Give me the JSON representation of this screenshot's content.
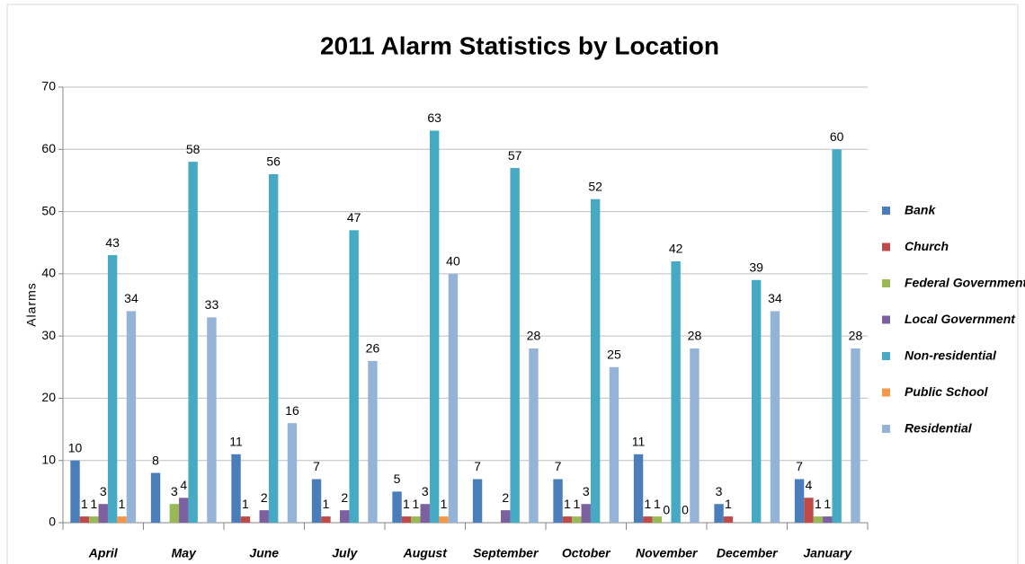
{
  "chart_data": {
    "type": "bar",
    "title": "2011 Alarm Statistics by Location",
    "y_label": "Alarms",
    "categories": [
      "April",
      "May",
      "June",
      "July",
      "August",
      "September",
      "October",
      "November",
      "December",
      "January"
    ],
    "series": [
      {
        "name": "Bank",
        "color": "#4a7ebb",
        "values": [
          10,
          8,
          11,
          7,
          5,
          7,
          7,
          11,
          3,
          7
        ]
      },
      {
        "name": "Church",
        "color": "#be4b48",
        "values": [
          1,
          null,
          1,
          1,
          1,
          null,
          1,
          1,
          1,
          4
        ]
      },
      {
        "name": "Federal Government",
        "color": "#98b954",
        "values": [
          1,
          3,
          null,
          null,
          1,
          null,
          1,
          1,
          null,
          1
        ]
      },
      {
        "name": "Local Government",
        "color": "#7d60a0",
        "values": [
          3,
          4,
          2,
          2,
          3,
          2,
          3,
          0,
          null,
          1
        ]
      },
      {
        "name": "Non-residential",
        "color": "#46aac5",
        "values": [
          43,
          58,
          56,
          47,
          63,
          57,
          52,
          42,
          39,
          60
        ]
      },
      {
        "name": "Public School",
        "color": "#f79646",
        "values": [
          1,
          null,
          null,
          null,
          1,
          null,
          null,
          0,
          null,
          null
        ]
      },
      {
        "name": "Residential",
        "color": "#95b3d7",
        "values": [
          34,
          33,
          16,
          26,
          40,
          28,
          25,
          28,
          34,
          28
        ]
      }
    ],
    "ylim": [
      0,
      70
    ],
    "yticks": [
      0,
      10,
      20,
      30,
      40,
      50,
      60,
      70
    ],
    "grid": true,
    "legend": "right",
    "data_labels": true
  }
}
